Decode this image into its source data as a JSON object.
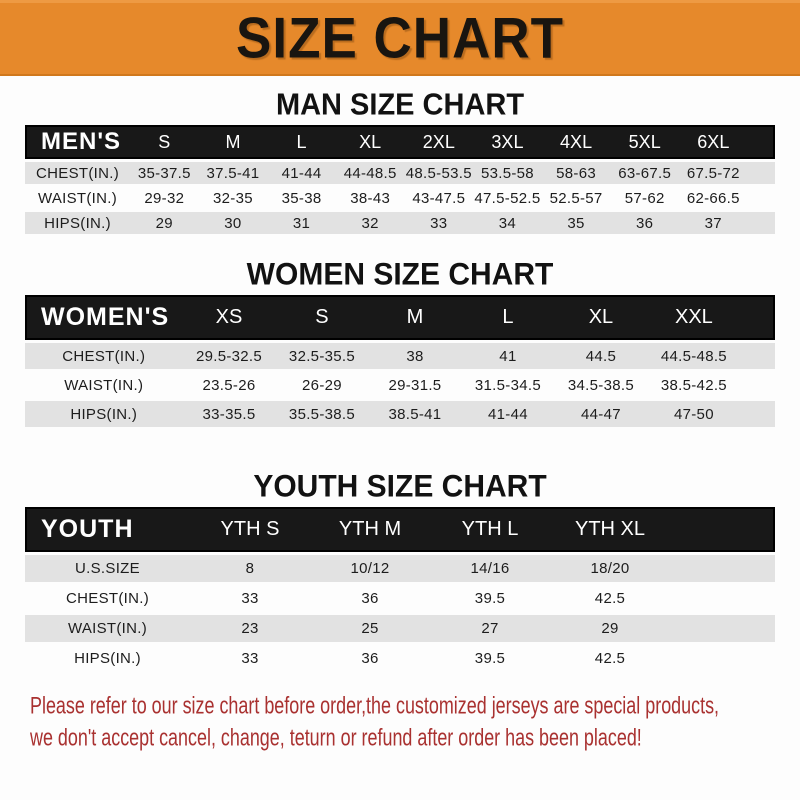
{
  "banner": {
    "title": "SIZE CHART"
  },
  "sections": [
    {
      "title": "MAN SIZE CHART",
      "header_label": "MEN'S",
      "columns": [
        "S",
        "M",
        "L",
        "XL",
        "2XL",
        "3XL",
        "4XL",
        "5XL",
        "6XL"
      ],
      "rows": [
        {
          "label": "CHEST(IN.)",
          "values": [
            "35-37.5",
            "37.5-41",
            "41-44",
            "44-48.5",
            "48.5-53.5",
            "53.5-58",
            "58-63",
            "63-67.5",
            "67.5-72"
          ]
        },
        {
          "label": "WAIST(IN.)",
          "values": [
            "29-32",
            "32-35",
            "35-38",
            "38-43",
            "43-47.5",
            "47.5-52.5",
            "52.5-57",
            "57-62",
            "62-66.5"
          ]
        },
        {
          "label": "HIPS(IN.)",
          "values": [
            "29",
            "30",
            "31",
            "32",
            "33",
            "34",
            "35",
            "36",
            "37"
          ]
        }
      ]
    },
    {
      "title": "WOMEN SIZE CHART",
      "header_label": "WOMEN'S",
      "columns": [
        "XS",
        "S",
        "M",
        "L",
        "XL",
        "XXL"
      ],
      "rows": [
        {
          "label": "CHEST(IN.)",
          "values": [
            "29.5-32.5",
            "32.5-35.5",
            "38",
            "41",
            "44.5",
            "44.5-48.5"
          ]
        },
        {
          "label": "WAIST(IN.)",
          "values": [
            "23.5-26",
            "26-29",
            "29-31.5",
            "31.5-34.5",
            "34.5-38.5",
            "38.5-42.5"
          ]
        },
        {
          "label": "HIPS(IN.)",
          "values": [
            "33-35.5",
            "35.5-38.5",
            "38.5-41",
            "41-44",
            "44-47",
            "47-50"
          ]
        }
      ]
    },
    {
      "title": "YOUTH SIZE CHART",
      "header_label": "YOUTH",
      "columns": [
        "YTH S",
        "YTH M",
        "YTH L",
        "YTH XL"
      ],
      "rows": [
        {
          "label": "U.S.SIZE",
          "values": [
            "8",
            "10/12",
            "14/16",
            "18/20"
          ]
        },
        {
          "label": "CHEST(IN.)",
          "values": [
            "33",
            "36",
            "39.5",
            "42.5"
          ]
        },
        {
          "label": "WAIST(IN.)",
          "values": [
            "23",
            "25",
            "27",
            "29"
          ]
        },
        {
          "label": "HIPS(IN.)",
          "values": [
            "33",
            "36",
            "39.5",
            "42.5"
          ]
        }
      ]
    }
  ],
  "disclaimer": {
    "line1": "Please refer to our size chart before order,the customized jerseys are special products,",
    "line2": "we don't accept cancel, change, teturn or refund after order has been placed!"
  },
  "colors": {
    "banner_bg": "#E6892B",
    "header_bar_bg": "#181818",
    "row_alt_bg": "#E2E2E2",
    "disclaimer_text": "#A93130"
  }
}
